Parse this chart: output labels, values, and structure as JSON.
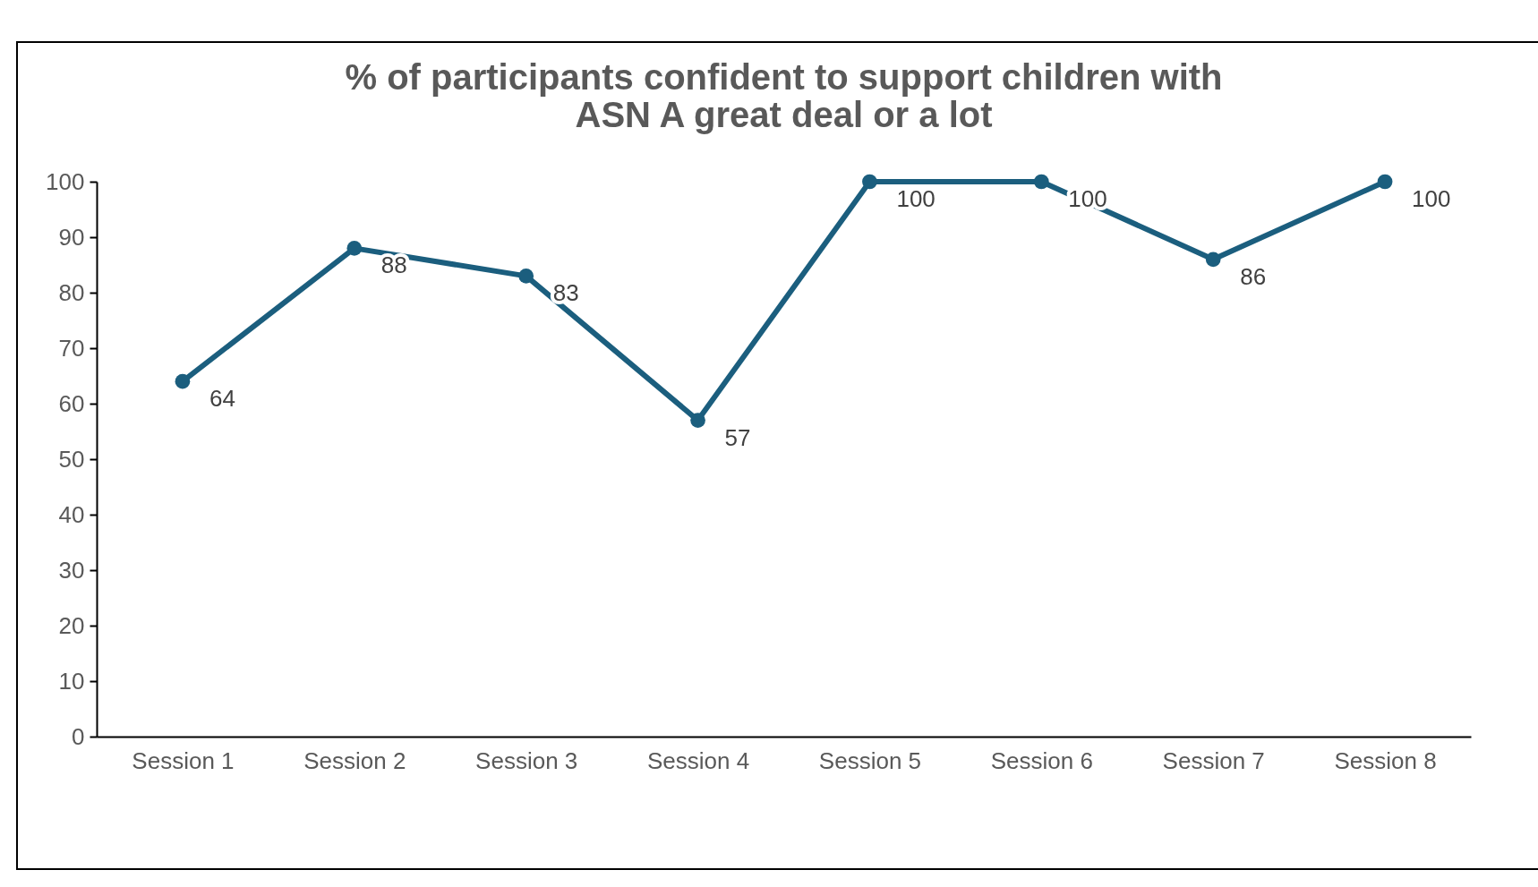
{
  "chart_data": {
    "type": "line",
    "title": "% of participants confident to support children with\nASN A great deal or a lot",
    "categories": [
      "Session 1",
      "Session 2",
      "Session 3",
      "Session 4",
      "Session 5",
      "Session 6",
      "Session 7",
      "Session 8"
    ],
    "series": [
      {
        "color": "#1b5e7e",
        "values": [
          64,
          88,
          83,
          57,
          100,
          100,
          86,
          100
        ]
      }
    ],
    "ylim": [
      0,
      100
    ],
    "yticks": [
      0,
      10,
      20,
      30,
      40,
      50,
      60,
      70,
      80,
      90,
      100
    ],
    "grid": false,
    "legend": false,
    "marker": "circle",
    "line_style": "solid",
    "data_labels": true
  }
}
